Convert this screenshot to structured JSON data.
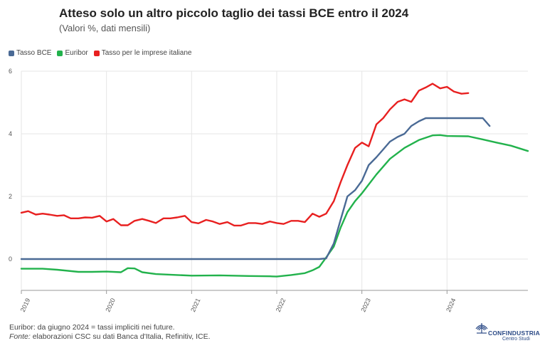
{
  "chart_data": {
    "type": "line",
    "title": "Atteso solo un altro piccolo taglio dei tassi BCE entro il 2024",
    "subtitle": "(Valori %, dati mensili)",
    "ylim": [
      -1,
      6
    ],
    "yticks": [
      0,
      2,
      4,
      6
    ],
    "xlim": [
      2019,
      2024.95
    ],
    "xticks": [
      2019,
      2020,
      2021,
      2022,
      2023,
      2024
    ],
    "series": [
      {
        "name": "Tasso BCE",
        "color": "#4a6a95",
        "points": [
          [
            2019.0,
            0
          ],
          [
            2022.5,
            0
          ],
          [
            2022.58,
            0.02
          ],
          [
            2022.67,
            0.5
          ],
          [
            2022.75,
            1.25
          ],
          [
            2022.83,
            2.0
          ],
          [
            2022.92,
            2.2
          ],
          [
            2023.0,
            2.5
          ],
          [
            2023.08,
            3.0
          ],
          [
            2023.17,
            3.25
          ],
          [
            2023.25,
            3.5
          ],
          [
            2023.33,
            3.75
          ],
          [
            2023.42,
            3.9
          ],
          [
            2023.5,
            4.0
          ],
          [
            2023.58,
            4.25
          ],
          [
            2023.67,
            4.4
          ],
          [
            2023.75,
            4.5
          ],
          [
            2024.33,
            4.5
          ],
          [
            2024.42,
            4.5
          ],
          [
            2024.5,
            4.25
          ]
        ]
      },
      {
        "name": "Euribor",
        "color": "#22b24c",
        "points": [
          [
            2019.0,
            -0.31
          ],
          [
            2019.25,
            -0.31
          ],
          [
            2019.42,
            -0.34
          ],
          [
            2019.67,
            -0.41
          ],
          [
            2019.83,
            -0.41
          ],
          [
            2020.0,
            -0.4
          ],
          [
            2020.17,
            -0.42
          ],
          [
            2020.25,
            -0.29
          ],
          [
            2020.33,
            -0.3
          ],
          [
            2020.42,
            -0.42
          ],
          [
            2020.58,
            -0.48
          ],
          [
            2020.83,
            -0.51
          ],
          [
            2021.0,
            -0.53
          ],
          [
            2021.33,
            -0.52
          ],
          [
            2021.67,
            -0.54
          ],
          [
            2021.92,
            -0.55
          ],
          [
            2022.0,
            -0.56
          ],
          [
            2022.17,
            -0.51
          ],
          [
            2022.33,
            -0.45
          ],
          [
            2022.42,
            -0.36
          ],
          [
            2022.5,
            -0.25
          ],
          [
            2022.58,
            0.05
          ],
          [
            2022.67,
            0.4
          ],
          [
            2022.75,
            1.0
          ],
          [
            2022.83,
            1.5
          ],
          [
            2022.92,
            1.85
          ],
          [
            2023.0,
            2.1
          ],
          [
            2023.17,
            2.7
          ],
          [
            2023.33,
            3.2
          ],
          [
            2023.5,
            3.55
          ],
          [
            2023.67,
            3.8
          ],
          [
            2023.83,
            3.95
          ],
          [
            2023.92,
            3.96
          ],
          [
            2024.0,
            3.93
          ],
          [
            2024.25,
            3.92
          ],
          [
            2024.42,
            3.82
          ],
          [
            2024.58,
            3.72
          ],
          [
            2024.75,
            3.62
          ],
          [
            2024.95,
            3.45
          ]
        ]
      },
      {
        "name": "Tasso per le imprese italiane",
        "color": "#e82020",
        "points": [
          [
            2019.0,
            1.48
          ],
          [
            2019.08,
            1.53
          ],
          [
            2019.17,
            1.42
          ],
          [
            2019.25,
            1.45
          ],
          [
            2019.33,
            1.42
          ],
          [
            2019.42,
            1.38
          ],
          [
            2019.5,
            1.4
          ],
          [
            2019.58,
            1.3
          ],
          [
            2019.67,
            1.3
          ],
          [
            2019.75,
            1.33
          ],
          [
            2019.83,
            1.32
          ],
          [
            2019.92,
            1.38
          ],
          [
            2020.0,
            1.2
          ],
          [
            2020.08,
            1.28
          ],
          [
            2020.17,
            1.08
          ],
          [
            2020.25,
            1.08
          ],
          [
            2020.33,
            1.22
          ],
          [
            2020.42,
            1.28
          ],
          [
            2020.5,
            1.22
          ],
          [
            2020.58,
            1.15
          ],
          [
            2020.67,
            1.3
          ],
          [
            2020.75,
            1.3
          ],
          [
            2020.83,
            1.33
          ],
          [
            2020.92,
            1.38
          ],
          [
            2021.0,
            1.18
          ],
          [
            2021.08,
            1.14
          ],
          [
            2021.17,
            1.25
          ],
          [
            2021.25,
            1.2
          ],
          [
            2021.33,
            1.12
          ],
          [
            2021.42,
            1.18
          ],
          [
            2021.5,
            1.07
          ],
          [
            2021.58,
            1.07
          ],
          [
            2021.67,
            1.15
          ],
          [
            2021.75,
            1.15
          ],
          [
            2021.83,
            1.12
          ],
          [
            2021.92,
            1.2
          ],
          [
            2022.0,
            1.15
          ],
          [
            2022.08,
            1.12
          ],
          [
            2022.17,
            1.22
          ],
          [
            2022.25,
            1.22
          ],
          [
            2022.33,
            1.18
          ],
          [
            2022.42,
            1.45
          ],
          [
            2022.5,
            1.35
          ],
          [
            2022.58,
            1.45
          ],
          [
            2022.67,
            1.85
          ],
          [
            2022.75,
            2.45
          ],
          [
            2022.83,
            3.0
          ],
          [
            2022.92,
            3.55
          ],
          [
            2023.0,
            3.72
          ],
          [
            2023.08,
            3.6
          ],
          [
            2023.17,
            4.3
          ],
          [
            2023.25,
            4.5
          ],
          [
            2023.33,
            4.78
          ],
          [
            2023.42,
            5.02
          ],
          [
            2023.5,
            5.1
          ],
          [
            2023.58,
            5.02
          ],
          [
            2023.67,
            5.38
          ],
          [
            2023.75,
            5.48
          ],
          [
            2023.83,
            5.6
          ],
          [
            2023.92,
            5.45
          ],
          [
            2024.0,
            5.5
          ],
          [
            2024.08,
            5.35
          ],
          [
            2024.17,
            5.28
          ],
          [
            2024.25,
            5.3
          ]
        ]
      }
    ]
  },
  "footnote": {
    "line1": "Euribor: da giugno 2024 = tassi impliciti nei future.",
    "line2_label": "Fonte:",
    "line2_text": " elaborazioni CSC su dati Banca d'Italia, Refinitiv, ICE."
  },
  "logo": {
    "name": "CONFINDUSTRIA",
    "sub": "Centro Studi"
  }
}
